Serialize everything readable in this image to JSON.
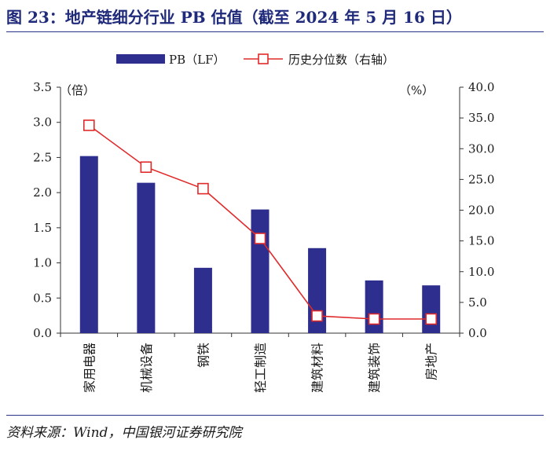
{
  "title": "图 23：地产链细分行业 PB 估值（截至 2024 年 5 月 16 日）",
  "source": "资料来源：Wind，中国银河证券研究院",
  "colors": {
    "bar": "#2e2e8f",
    "line": "#e02a2a",
    "title": "#1f2a7a",
    "rule": "#2a3486"
  },
  "chart_data": {
    "type": "bar+line",
    "title": "地产链细分行业 PB 估值（截至 2024 年 5 月 16 日）",
    "categories": [
      "家用电器",
      "机械设备",
      "钢铁",
      "轻工制造",
      "建筑材料",
      "建筑装饰",
      "房地产"
    ],
    "series": [
      {
        "name": "PB（LF）",
        "type": "bar",
        "axis": "left",
        "values": [
          2.52,
          2.14,
          0.93,
          1.76,
          1.21,
          0.75,
          0.68
        ]
      },
      {
        "name": "历史分位数（右轴）",
        "type": "line",
        "axis": "right",
        "values": [
          33.8,
          27.0,
          23.5,
          15.4,
          2.8,
          2.3,
          2.3
        ]
      }
    ],
    "left_axis": {
      "label": "（倍）",
      "ylim": [
        0,
        3.5
      ],
      "ticks": [
        "0.0",
        "0.5",
        "1.0",
        "1.5",
        "2.0",
        "2.5",
        "3.0",
        "3.5"
      ]
    },
    "right_axis": {
      "label": "（%）",
      "ylim": [
        0,
        40
      ],
      "ticks": [
        "0.0",
        "5.0",
        "10.0",
        "15.0",
        "20.0",
        "25.0",
        "30.0",
        "35.0",
        "40.0"
      ]
    },
    "legend_position": "top"
  }
}
